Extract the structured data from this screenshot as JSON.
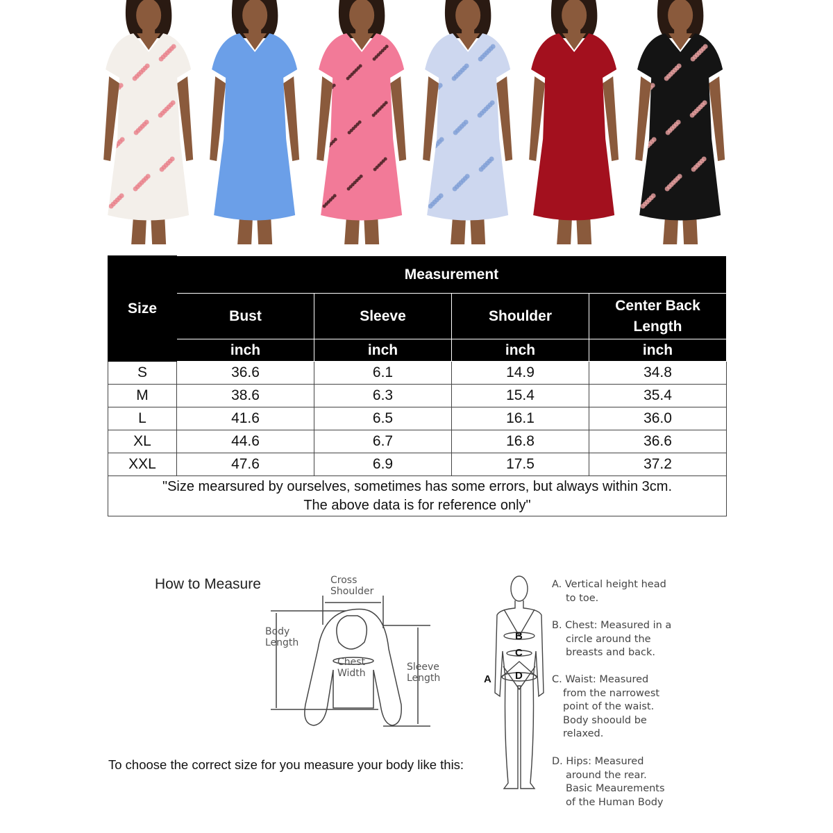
{
  "models": [
    {
      "name": "white-floral",
      "color": "#f3efea",
      "accent": "#e8808a"
    },
    {
      "name": "blue",
      "color": "#6b9fe8",
      "accent": "#5a8fd8"
    },
    {
      "name": "pink-leopard",
      "color": "#f27a98",
      "accent": "#3a1a1a"
    },
    {
      "name": "light-blue-floral",
      "color": "#cdd7ef",
      "accent": "#7f9fd6"
    },
    {
      "name": "red",
      "color": "#a3101e",
      "accent": "#80101a"
    },
    {
      "name": "black-floral",
      "color": "#141414",
      "accent": "#e8a0a0"
    }
  ],
  "table": {
    "size_header": "Size",
    "group_header": "Measurement",
    "columns": [
      "Bust",
      "Sleeve",
      "Shoulder",
      "Center Back Length"
    ],
    "unit": "inch",
    "rows": [
      [
        "S",
        "36.6",
        "6.1",
        "14.9",
        "34.8"
      ],
      [
        "M",
        "38.6",
        "6.3",
        "15.4",
        "35.4"
      ],
      [
        "L",
        "41.6",
        "6.5",
        "16.1",
        "36.0"
      ],
      [
        "XL",
        "44.6",
        "6.7",
        "16.8",
        "36.6"
      ],
      [
        "XXL",
        "47.6",
        "6.9",
        "17.5",
        "37.2"
      ]
    ],
    "note_line1": "\"Size mearsured by ourselves, sometimes has some errors, but always within 3cm.",
    "note_line2": "The above data is for reference only\""
  },
  "howto": {
    "title": "How to Measure",
    "cross_shoulder": "Cross Shoulder",
    "body_length": "Body Length",
    "chest_width": "Chest Width",
    "sleeve_length": "Sleeve Length",
    "instruction": "To choose the correct size for you measure your body like this:",
    "letters": [
      "A",
      "B",
      "C",
      "D"
    ],
    "legend": [
      {
        "label": "A. Vertical height head",
        "cont": "to toe."
      },
      {
        "label": "B. Chest: Measured in a",
        "cont": "circle around the breasts and back."
      },
      {
        "label": "C. Waist: Measured",
        "cont": "from the narrowest point of the waist. Body shoould be relaxed."
      },
      {
        "label": "D. Hips: Measured",
        "cont": "around the rear. Basic Meaurements of the Human Body"
      }
    ]
  }
}
